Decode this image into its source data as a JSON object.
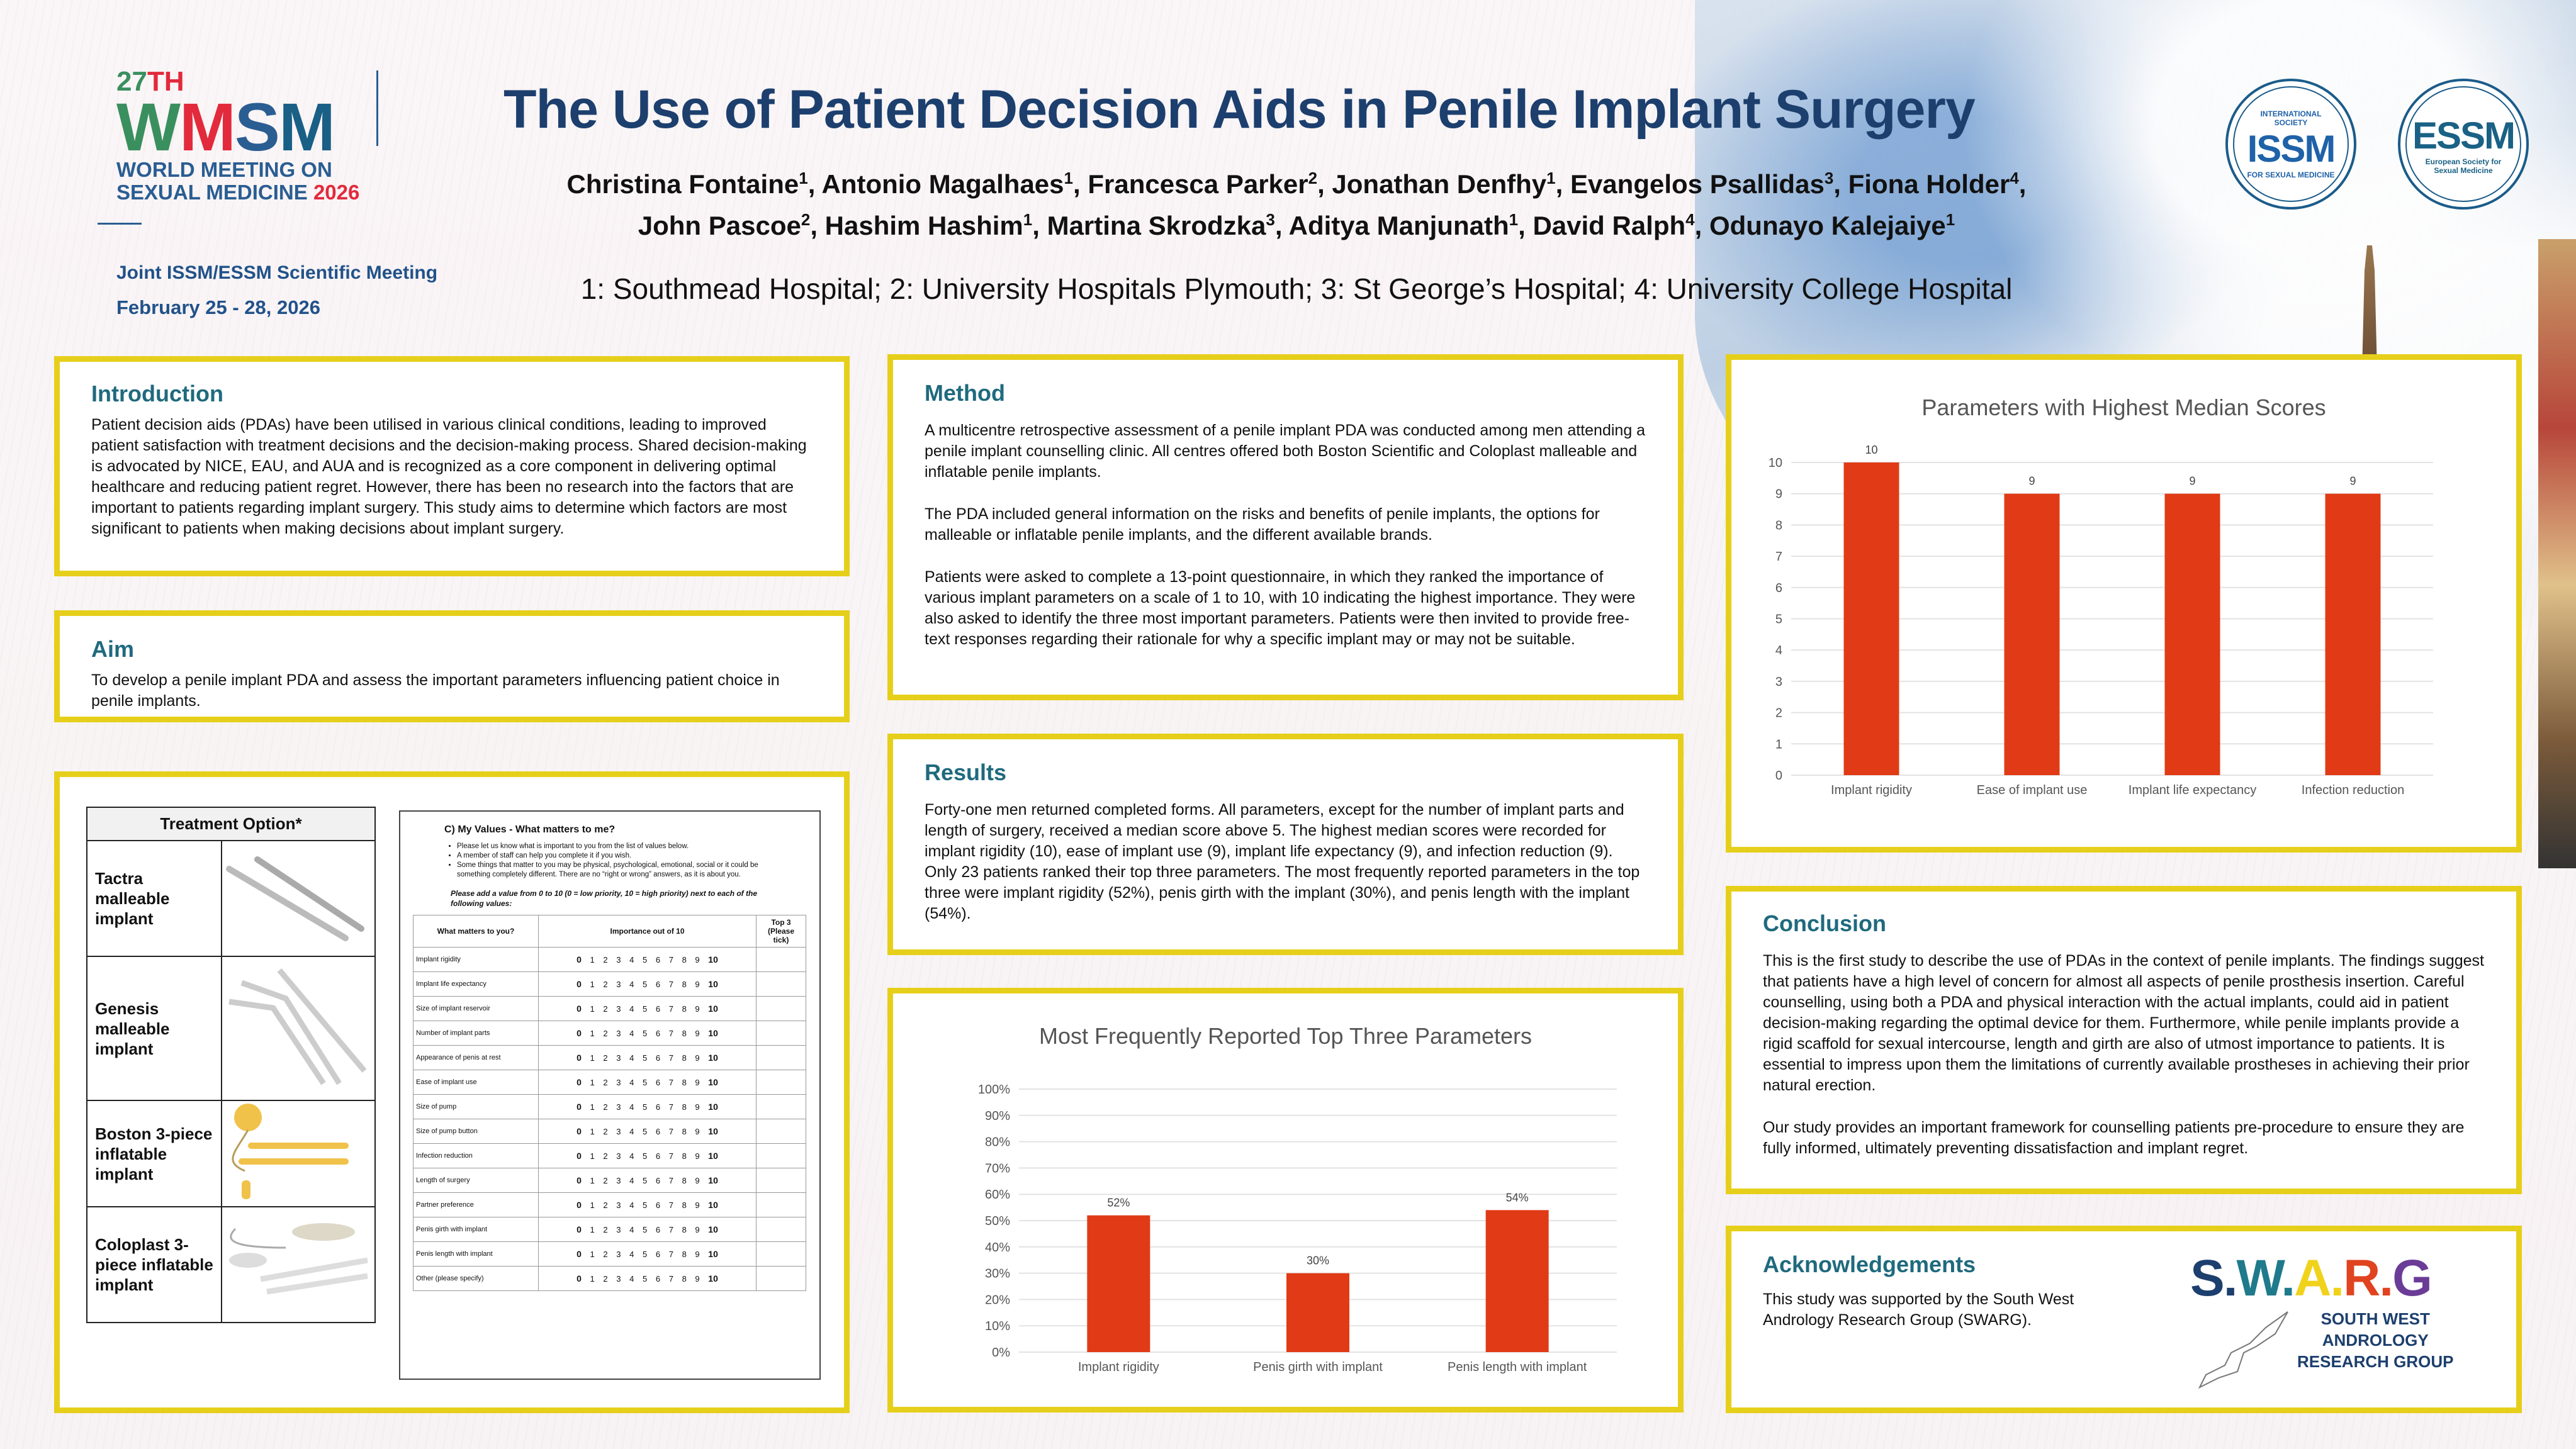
{
  "header": {
    "conference": {
      "edition": "27TH",
      "acronym": [
        "W",
        "M",
        "S",
        "M"
      ],
      "line1": "WORLD MEETING ON",
      "line2": "SEXUAL MEDICINE",
      "year": "2026",
      "joint": "Joint ISSM/ESSM Scientific Meeting",
      "dates": "February 25 - 28, 2026"
    },
    "title": "The Use of Patient Decision Aids in Penile Implant Surgery",
    "authors": [
      {
        "name": "Christina Fontaine",
        "aff": "1"
      },
      {
        "name": "Antonio Magalhaes",
        "aff": "1"
      },
      {
        "name": "Francesca Parker",
        "aff": "2"
      },
      {
        "name": "Jonathan Denfhy",
        "aff": "1"
      },
      {
        "name": "Evangelos Psallidas",
        "aff": "3"
      },
      {
        "name": "Fiona Holder",
        "aff": "4"
      },
      {
        "name": "John Pascoe",
        "aff": "2"
      },
      {
        "name": "Hashim Hashim",
        "aff": "1"
      },
      {
        "name": "Martina Skrodzka",
        "aff": "3"
      },
      {
        "name": "Aditya Manjunath",
        "aff": "1"
      },
      {
        "name": "David Ralph",
        "aff": "4"
      },
      {
        "name": "Odunayo Kalejaiye",
        "aff": "1"
      }
    ],
    "affiliations": "1: Southmead Hospital; 2: University Hospitals Plymouth; 3: St George’s Hospital; 4: University College Hospital",
    "logos": {
      "issm": {
        "abbr": "ISSM",
        "top": "INTERNATIONAL SOCIETY",
        "bottom": "FOR SEXUAL MEDICINE"
      },
      "essm": {
        "abbr": "ESSM",
        "ring": "European Society for Sexual Medicine"
      }
    }
  },
  "colors": {
    "accent_border": "#e6cf1a",
    "heading": "#1f6a7e",
    "title": "#1c3f6e",
    "bar": "#e03b16",
    "wmsm_green": "#3a8f5e",
    "wmsm_red": "#e22a3c",
    "wmsm_blue": "#2a5d92"
  },
  "sections": {
    "introduction": {
      "heading": "Introduction",
      "body": "Patient decision aids (PDAs) have been utilised in various clinical conditions, leading to improved patient satisfaction with treatment decisions and the decision-making process. Shared decision-making is advocated by NICE, EAU, and AUA and is recognized as a core component in delivering optimal healthcare and reducing patient regret. However, there has been no research into the factors that are important to patients regarding implant surgery. This study aims to determine which factors are most significant to patients when making decisions about implant surgery."
    },
    "aim": {
      "heading": "Aim",
      "body": "To develop a penile implant PDA and assess the important parameters influencing patient choice in penile implants."
    },
    "method": {
      "heading": "Method",
      "paragraphs": [
        "A multicentre retrospective assessment of a penile implant PDA was conducted among men attending a penile implant counselling clinic. All centres offered both Boston Scientific and Coloplast malleable and inflatable penile implants.",
        "The PDA included general information on the risks and benefits of penile implants, the options for malleable or inflatable penile implants, and the different available brands.",
        "Patients were asked to complete a 13-point questionnaire, in which they ranked the importance of various implant parameters on a scale of 1 to 10, with 10 indicating the highest importance. They were also asked to identify the three most important parameters. Patients were then invited to provide free-text responses regarding their rationale for why a specific implant may or may not be suitable."
      ]
    },
    "results": {
      "heading": "Results",
      "body": "Forty-one men returned completed forms. All parameters, except for the number of implant parts and length of surgery, received a median score above 5. The highest median scores were recorded for implant rigidity (10), ease of implant use (9), implant life expectancy (9), and infection reduction (9). Only 23 patients ranked their top three parameters. The most frequently reported parameters in the top three were implant rigidity (52%), penis girth with the implant (30%), and penis length with the implant (54%)."
    },
    "conclusion": {
      "heading": "Conclusion",
      "paragraphs": [
        "This is the first study to describe the use of PDAs in the context of penile implants. The findings suggest that patients have a high level of concern for almost all aspects of penile prosthesis insertion. Careful counselling, using both a PDA and physical interaction with the actual implants, could aid in patient decision-making regarding the optimal device for them. Furthermore, while penile implants provide a rigid scaffold for sexual intercourse, length and girth are also of utmost importance to patients. It is essential to impress upon them the limitations of currently available prostheses in achieving their prior natural erection.",
        "Our study provides an important framework for counselling patients pre-procedure to ensure they are fully informed, ultimately preventing dissatisfaction and implant regret."
      ]
    },
    "acknowledgements": {
      "heading": "Acknowledgements",
      "body": "This study was supported by the South West Andrology Research Group (SWARG).",
      "logo": {
        "letters": [
          {
            "ch": "S.",
            "color": "#1c3f6e"
          },
          {
            "ch": "W.",
            "color": "#1f7a8c"
          },
          {
            "ch": "A.",
            "color": "#f0d21b"
          },
          {
            "ch": "R.",
            "color": "#e0431f"
          },
          {
            "ch": "G",
            "color": "#6b3c97"
          }
        ],
        "lines": [
          "SOUTH WEST",
          "ANDROLOGY",
          "RESEARCH GROUP"
        ]
      }
    }
  },
  "treatment_table": {
    "header": "Treatment Option*",
    "rows": [
      {
        "label": "Tactra malleable implant",
        "image": "two straight grey rods"
      },
      {
        "label": "Genesis malleable implant",
        "image": "three white bendable rods"
      },
      {
        "label": "Boston 3-piece inflatable implant",
        "image": "yellow reservoir, cylinders and pump"
      },
      {
        "label": "Coloplast 3-piece inflatable implant",
        "image": "white reservoir, cylinders and pump"
      }
    ]
  },
  "questionnaire": {
    "heading": "C)  My Values - What matters to me?",
    "bullets": [
      "Please let us know what is important to you from the list of values below.",
      "A member of staff can help you complete it if you wish.",
      "Some things that matter to you may be physical, psychological, emotional, social or it could be something completely different.  There are no “right or wrong” answers, as it is about you."
    ],
    "instruction": "Please add a value from 0 to 10 (0 = low priority, 10 = high priority) next to each of the following values:",
    "columns": [
      "What matters to you?",
      "Importance out of 10",
      "Top 3 (Please tick)"
    ],
    "scale": [
      "0",
      "1",
      "2",
      "3",
      "4",
      "5",
      "6",
      "7",
      "8",
      "9",
      "10"
    ],
    "items": [
      "Implant rigidity",
      "Implant life expectancy",
      "Size of implant reservoir",
      "Number of implant parts",
      "Appearance of penis at rest",
      "Ease of implant use",
      "Size of pump",
      "Size of pump button",
      "Infection reduction",
      "Length of surgery",
      "Partner preference",
      "Penis girth with implant",
      "Penis length with implant",
      "Other (please specify)"
    ]
  },
  "chart_data": [
    {
      "type": "bar",
      "title": "Most Frequently Reported Top Three Parameters",
      "categories": [
        "Implant rigidity",
        "Penis girth with implant",
        "Penis length with implant"
      ],
      "values": [
        52,
        30,
        54
      ],
      "data_labels": [
        "52%",
        "30%",
        "54%"
      ],
      "xlabel": "",
      "ylabel": "",
      "ylim": [
        0,
        100
      ],
      "yticks": [
        "0%",
        "10%",
        "20%",
        "30%",
        "40%",
        "50%",
        "60%",
        "70%",
        "80%",
        "90%",
        "100%"
      ],
      "grid": true,
      "legend": "none",
      "color": "#e03b16"
    },
    {
      "type": "bar",
      "title": "Parameters with Highest Median Scores",
      "categories": [
        "Implant rigidity",
        "Ease of implant use",
        "Implant life expectancy",
        "Infection reduction"
      ],
      "values": [
        10,
        9,
        9,
        9
      ],
      "data_labels": [
        "10",
        "9",
        "9",
        "9"
      ],
      "xlabel": "",
      "ylabel": "",
      "ylim": [
        0,
        10
      ],
      "yticks": [
        "0",
        "1",
        "2",
        "3",
        "4",
        "5",
        "6",
        "7",
        "8",
        "9",
        "10"
      ],
      "grid": true,
      "legend": "none",
      "color": "#e03b16"
    }
  ]
}
